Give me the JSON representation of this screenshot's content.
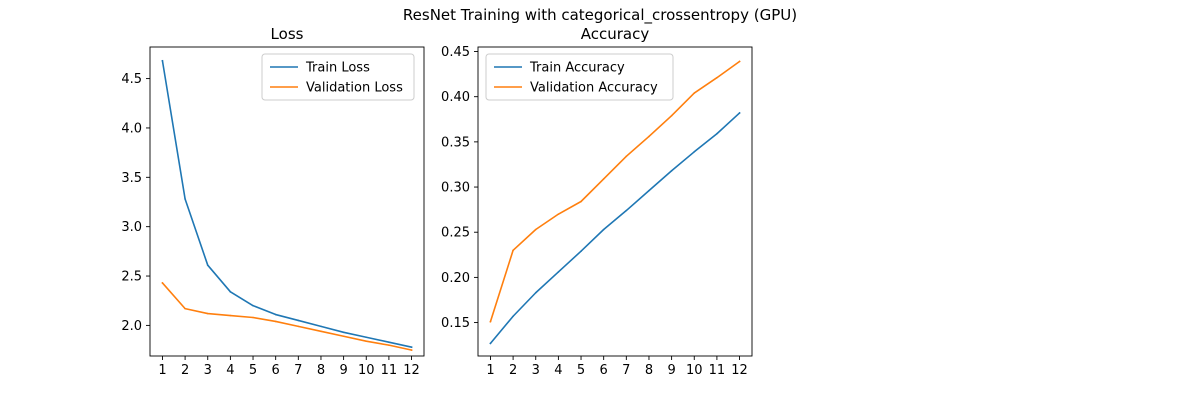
{
  "figure": {
    "suptitle": "ResNet Training with categorical_crossentropy (GPU)"
  },
  "chart_data": [
    {
      "type": "line",
      "title": "Loss",
      "xlabel": "",
      "ylabel": "",
      "x": [
        1,
        2,
        3,
        4,
        5,
        6,
        7,
        8,
        9,
        10,
        11,
        12
      ],
      "xticks": [
        "1",
        "2",
        "3",
        "4",
        "5",
        "6",
        "7",
        "8",
        "9",
        "10",
        "11",
        "12"
      ],
      "yticks": [
        2.0,
        2.5,
        3.0,
        3.5,
        4.0,
        4.5
      ],
      "ylim": [
        1.69,
        4.82
      ],
      "xlim": [
        0.45,
        12.55
      ],
      "grid": false,
      "legend": "upper right",
      "series": [
        {
          "name": "Train Loss",
          "color": "#1f77b4",
          "values": [
            4.68,
            3.28,
            2.61,
            2.34,
            2.2,
            2.11,
            2.05,
            1.99,
            1.93,
            1.88,
            1.83,
            1.78
          ]
        },
        {
          "name": "Validation Loss",
          "color": "#ff7f0e",
          "values": [
            2.43,
            2.17,
            2.12,
            2.1,
            2.08,
            2.04,
            1.99,
            1.94,
            1.89,
            1.84,
            1.8,
            1.75
          ]
        }
      ]
    },
    {
      "type": "line",
      "title": "Accuracy",
      "xlabel": "",
      "ylabel": "",
      "x": [
        1,
        2,
        3,
        4,
        5,
        6,
        7,
        8,
        9,
        10,
        11,
        12
      ],
      "xticks": [
        "1",
        "2",
        "3",
        "4",
        "5",
        "6",
        "7",
        "8",
        "9",
        "10",
        "11",
        "12"
      ],
      "yticks": [
        0.15,
        0.2,
        0.25,
        0.3,
        0.35,
        0.4,
        0.45
      ],
      "ylim": [
        0.113,
        0.455
      ],
      "xlim": [
        0.45,
        12.55
      ],
      "grid": false,
      "legend": "upper left",
      "series": [
        {
          "name": "Train Accuracy",
          "color": "#1f77b4",
          "values": [
            0.127,
            0.157,
            0.183,
            0.206,
            0.229,
            0.253,
            0.274,
            0.296,
            0.318,
            0.339,
            0.359,
            0.382
          ]
        },
        {
          "name": "Validation Accuracy",
          "color": "#ff7f0e",
          "values": [
            0.151,
            0.23,
            0.253,
            0.27,
            0.284,
            0.309,
            0.334,
            0.356,
            0.379,
            0.404,
            0.421,
            0.439
          ]
        }
      ]
    }
  ]
}
